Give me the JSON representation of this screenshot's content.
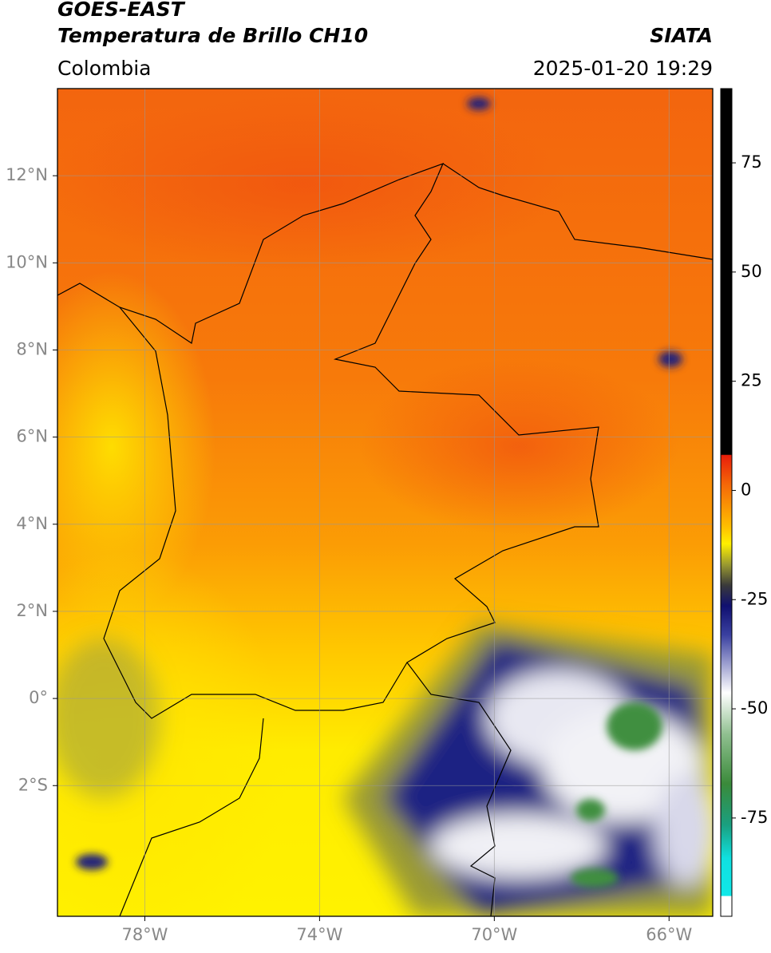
{
  "header": {
    "title": "GOES-EAST",
    "subtitle": "Temperatura de Brillo CH10",
    "source": "SIATA",
    "region": "Colombia",
    "datetime": "2025-01-20 19:29"
  },
  "map": {
    "xlim": [
      -80,
      -65
    ],
    "ylim": [
      -5,
      14
    ],
    "xticks": [
      {
        "value": -78,
        "label": "78°W"
      },
      {
        "value": -74,
        "label": "74°W"
      },
      {
        "value": -70,
        "label": "70°W"
      },
      {
        "value": -66,
        "label": "66°W"
      }
    ],
    "yticks": [
      {
        "value": 12,
        "label": "12°N"
      },
      {
        "value": 10,
        "label": "10°N"
      },
      {
        "value": 8,
        "label": "8°N"
      },
      {
        "value": 6,
        "label": "6°N"
      },
      {
        "value": 4,
        "label": "4°N"
      },
      {
        "value": 2,
        "label": "2°N"
      },
      {
        "value": 0,
        "label": "0°"
      },
      {
        "value": -2,
        "label": "2°S"
      }
    ],
    "grid": true
  },
  "colorbar": {
    "lim": [
      -97.5,
      92
    ],
    "ticks": [
      75,
      50,
      25,
      0,
      -25,
      -50,
      -75
    ]
  }
}
